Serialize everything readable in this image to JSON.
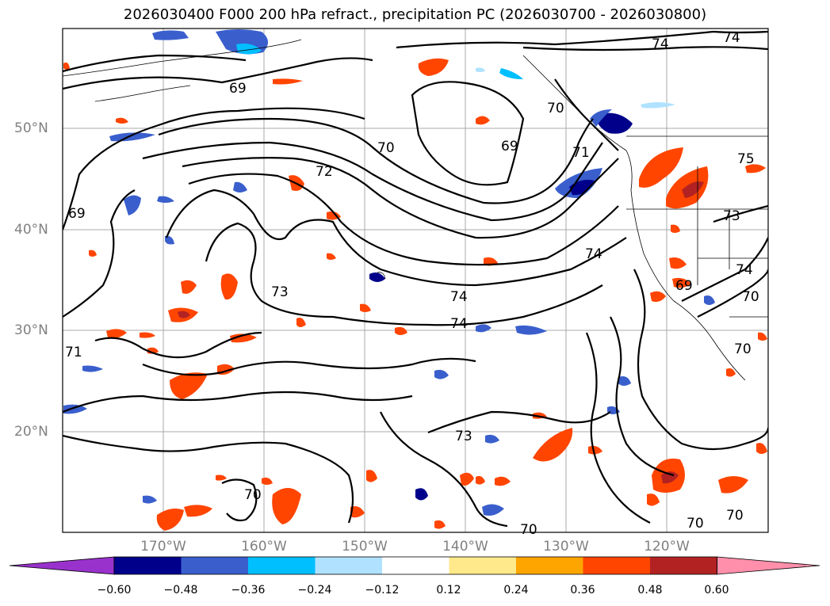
{
  "title": "2026030400 F000 200 hPa refract., precipitation PC (2026030700 - 2026030800)",
  "latitude_labels": [
    "50°N",
    "40°N",
    "30°N",
    "20°N"
  ],
  "longitude_labels": [
    "170°W",
    "160°W",
    "150°W",
    "140°W",
    "130°W",
    "120°W"
  ],
  "contour_labels": [
    "74",
    "74",
    "69",
    "70",
    "70",
    "69",
    "72",
    "71",
    "75",
    "69",
    "73",
    "74",
    "74",
    "73",
    "74",
    "74",
    "70",
    "69",
    "71",
    "70",
    "73",
    "70",
    "70",
    "70",
    "70"
  ],
  "colorbar": {
    "ticks": [
      "−0.60",
      "−0.48",
      "−0.36",
      "−0.24",
      "−0.12",
      "0.12",
      "0.24",
      "0.36",
      "0.48",
      "0.60"
    ],
    "colors": [
      "#9932cc",
      "#00008b",
      "#3a5fcd",
      "#00bfff",
      "#b0e2ff",
      "#ffffff",
      "#ffe98a",
      "#ffa500",
      "#ff4500",
      "#b22222",
      "#ff8fab"
    ]
  },
  "colors": {
    "frame": "#000000",
    "grid": "#a9a9a9",
    "contour": "#000000",
    "coast": "#000000",
    "axis_label": "#808080"
  }
}
